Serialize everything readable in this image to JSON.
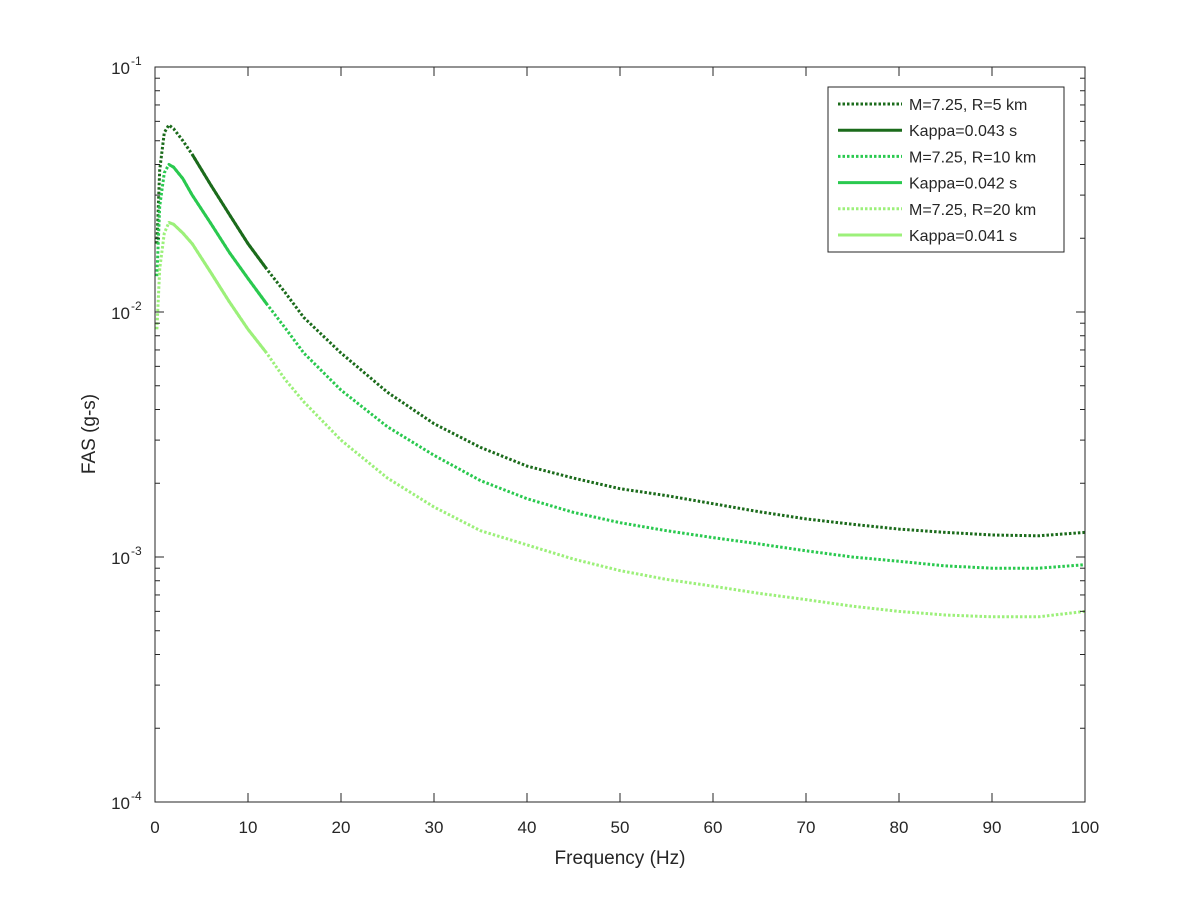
{
  "chart_data": {
    "type": "line",
    "xlabel": "Frequency (Hz)",
    "ylabel": "FAS (g-s)",
    "xlim": [
      0,
      100
    ],
    "ylim": [
      0.0001,
      0.1
    ],
    "yscale": "log",
    "xticks": [
      0,
      10,
      20,
      30,
      40,
      50,
      60,
      70,
      80,
      90,
      100
    ],
    "xtick_labels": [
      "0",
      "10",
      "20",
      "30",
      "40",
      "50",
      "60",
      "70",
      "80",
      "90",
      "100"
    ],
    "yticks": [
      {
        "value": 0.1,
        "base": "10",
        "exp": "-1"
      },
      {
        "value": 0.01,
        "base": "10",
        "exp": "-2"
      },
      {
        "value": 0.001,
        "base": "10",
        "exp": "-3"
      },
      {
        "value": 0.0001,
        "base": "10",
        "exp": "-4"
      }
    ],
    "grid": false,
    "legend_position": "top-right",
    "series": [
      {
        "name": "M=7.25, R=5 km",
        "style": "dotted",
        "color": "#1b6b1b",
        "x": [
          0.2,
          0.5,
          1,
          1.5,
          2,
          3,
          4,
          6,
          8,
          10,
          12,
          14,
          16,
          20,
          25,
          30,
          35,
          40,
          45,
          50,
          55,
          60,
          65,
          70,
          75,
          80,
          85,
          90,
          95,
          100
        ],
        "y": [
          0.019,
          0.038,
          0.054,
          0.058,
          0.056,
          0.05,
          0.044,
          0.033,
          0.025,
          0.019,
          0.015,
          0.012,
          0.0095,
          0.0068,
          0.0047,
          0.0035,
          0.0028,
          0.00235,
          0.0021,
          0.0019,
          0.00178,
          0.00165,
          0.00153,
          0.00143,
          0.00136,
          0.0013,
          0.00126,
          0.00123,
          0.00122,
          0.00126
        ]
      },
      {
        "name": "Kappa=0.043 s",
        "style": "solid",
        "color": "#1b6b1b",
        "x": [
          4,
          6,
          8,
          10,
          12
        ],
        "y": [
          0.044,
          0.033,
          0.025,
          0.019,
          0.015
        ]
      },
      {
        "name": "M=7.25, R=10 km",
        "style": "dotted",
        "color": "#2ac94f",
        "x": [
          0.2,
          0.5,
          1,
          1.5,
          2,
          3,
          4,
          6,
          8,
          10,
          12,
          14,
          16,
          20,
          25,
          30,
          35,
          40,
          45,
          50,
          55,
          60,
          65,
          70,
          75,
          80,
          85,
          90,
          95,
          100
        ],
        "y": [
          0.014,
          0.027,
          0.037,
          0.04,
          0.039,
          0.035,
          0.03,
          0.023,
          0.0175,
          0.0137,
          0.0108,
          0.0086,
          0.0068,
          0.0048,
          0.0034,
          0.0026,
          0.00205,
          0.00173,
          0.00152,
          0.00138,
          0.00128,
          0.0012,
          0.00113,
          0.00106,
          0.001,
          0.00096,
          0.00092,
          0.0009,
          0.0009,
          0.00093
        ]
      },
      {
        "name": "Kappa=0.042 s",
        "style": "solid",
        "color": "#2ac94f",
        "x": [
          1.5,
          2,
          3,
          4,
          6,
          8,
          10,
          12
        ],
        "y": [
          0.04,
          0.039,
          0.035,
          0.03,
          0.023,
          0.0175,
          0.0137,
          0.0108
        ]
      },
      {
        "name": "M=7.25, R=20 km",
        "style": "dotted",
        "color": "#9cf07a",
        "x": [
          0.2,
          0.5,
          1,
          1.5,
          2,
          3,
          4,
          6,
          8,
          10,
          12,
          14,
          16,
          20,
          25,
          30,
          35,
          40,
          45,
          50,
          55,
          60,
          65,
          70,
          75,
          80,
          85,
          90,
          95,
          100
        ],
        "y": [
          0.0085,
          0.015,
          0.021,
          0.0232,
          0.0228,
          0.021,
          0.019,
          0.0145,
          0.011,
          0.0085,
          0.0068,
          0.0053,
          0.0043,
          0.003,
          0.0021,
          0.0016,
          0.00128,
          0.00112,
          0.00098,
          0.00088,
          0.00081,
          0.00076,
          0.00071,
          0.00067,
          0.00063,
          0.0006,
          0.00058,
          0.00057,
          0.00057,
          0.0006
        ]
      },
      {
        "name": "Kappa=0.041 s",
        "style": "solid",
        "color": "#9cf07a",
        "x": [
          1.5,
          2,
          3,
          4,
          6,
          8,
          10,
          12
        ],
        "y": [
          0.0232,
          0.0228,
          0.021,
          0.019,
          0.0145,
          0.011,
          0.0085,
          0.0068
        ]
      }
    ]
  }
}
